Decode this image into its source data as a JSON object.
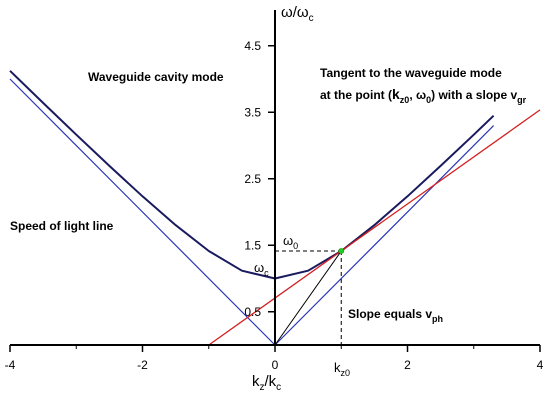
{
  "chart_data": {
    "type": "line",
    "title": "",
    "xlabel": "kz/kc",
    "ylabel": "ω/ωc",
    "xlim": [
      -4,
      4
    ],
    "ylim": [
      0,
      5.0
    ],
    "x_ticks": [
      -4,
      -2,
      0,
      2,
      4
    ],
    "y_ticks": [
      0.5,
      1.5,
      2.5,
      3.5,
      4.5
    ],
    "grid": false,
    "axes_through_origin": true,
    "tangent_point": {
      "x": 1.0,
      "y": 1.414
    },
    "tangent_slope": 0.707,
    "series": [
      {
        "color": "#1a1a5e",
        "points": [
          [
            -4.0,
            4.123
          ],
          [
            -3.5,
            3.64
          ],
          [
            -3.0,
            3.162
          ],
          [
            -2.5,
            2.693
          ],
          [
            -2.0,
            2.236
          ],
          [
            -1.5,
            1.803
          ],
          [
            -1.0,
            1.414
          ],
          [
            -0.5,
            1.118
          ],
          [
            0.0,
            1.0
          ],
          [
            0.5,
            1.118
          ],
          [
            1.0,
            1.414
          ],
          [
            1.5,
            1.803
          ],
          [
            2.0,
            2.236
          ],
          [
            2.5,
            2.693
          ],
          [
            3.0,
            3.162
          ],
          [
            3.3,
            3.448
          ]
        ]
      },
      {
        "color": "#2b35b8",
        "points": [
          [
            -4.0,
            4.0
          ],
          [
            0.0,
            0.0
          ],
          [
            3.3,
            3.3
          ]
        ]
      },
      {
        "color": "#d42020",
        "points": [
          [
            -1.0,
            0.0
          ],
          [
            4.0,
            3.535
          ]
        ]
      },
      {
        "color": "#000000",
        "points": [
          [
            0.0,
            0.0
          ],
          [
            1.0,
            1.414
          ]
        ]
      }
    ],
    "annotations": {
      "cavity_mode": "Waveguide cavity mode",
      "tangent_line1": "Tangent to the waveguide mode",
      "tangent_line2_a": "at the point (",
      "tangent_line2_k": "k",
      "tangent_line2_ksub": "z0",
      "tangent_line2_mid": ", ω",
      "tangent_line2_osub": "0",
      "tangent_line2_b": ") with a slope v",
      "tangent_line2_vsub": "gr",
      "light_line": "Speed of light line",
      "slope_main": "Slope equals v",
      "slope_sub": "ph",
      "omega0_main": "ω",
      "omega0_sub": "0",
      "omegac_main": "ω",
      "omegac_sub": "c",
      "kz0_main": "k",
      "kz0_sub": "z0",
      "xlabel_main": "k",
      "xlabel_sub1": "z",
      "xlabel_mid": "/k",
      "xlabel_sub2": "c",
      "ylabel_main1": "ω/ω",
      "ylabel_sub": "c"
    }
  }
}
